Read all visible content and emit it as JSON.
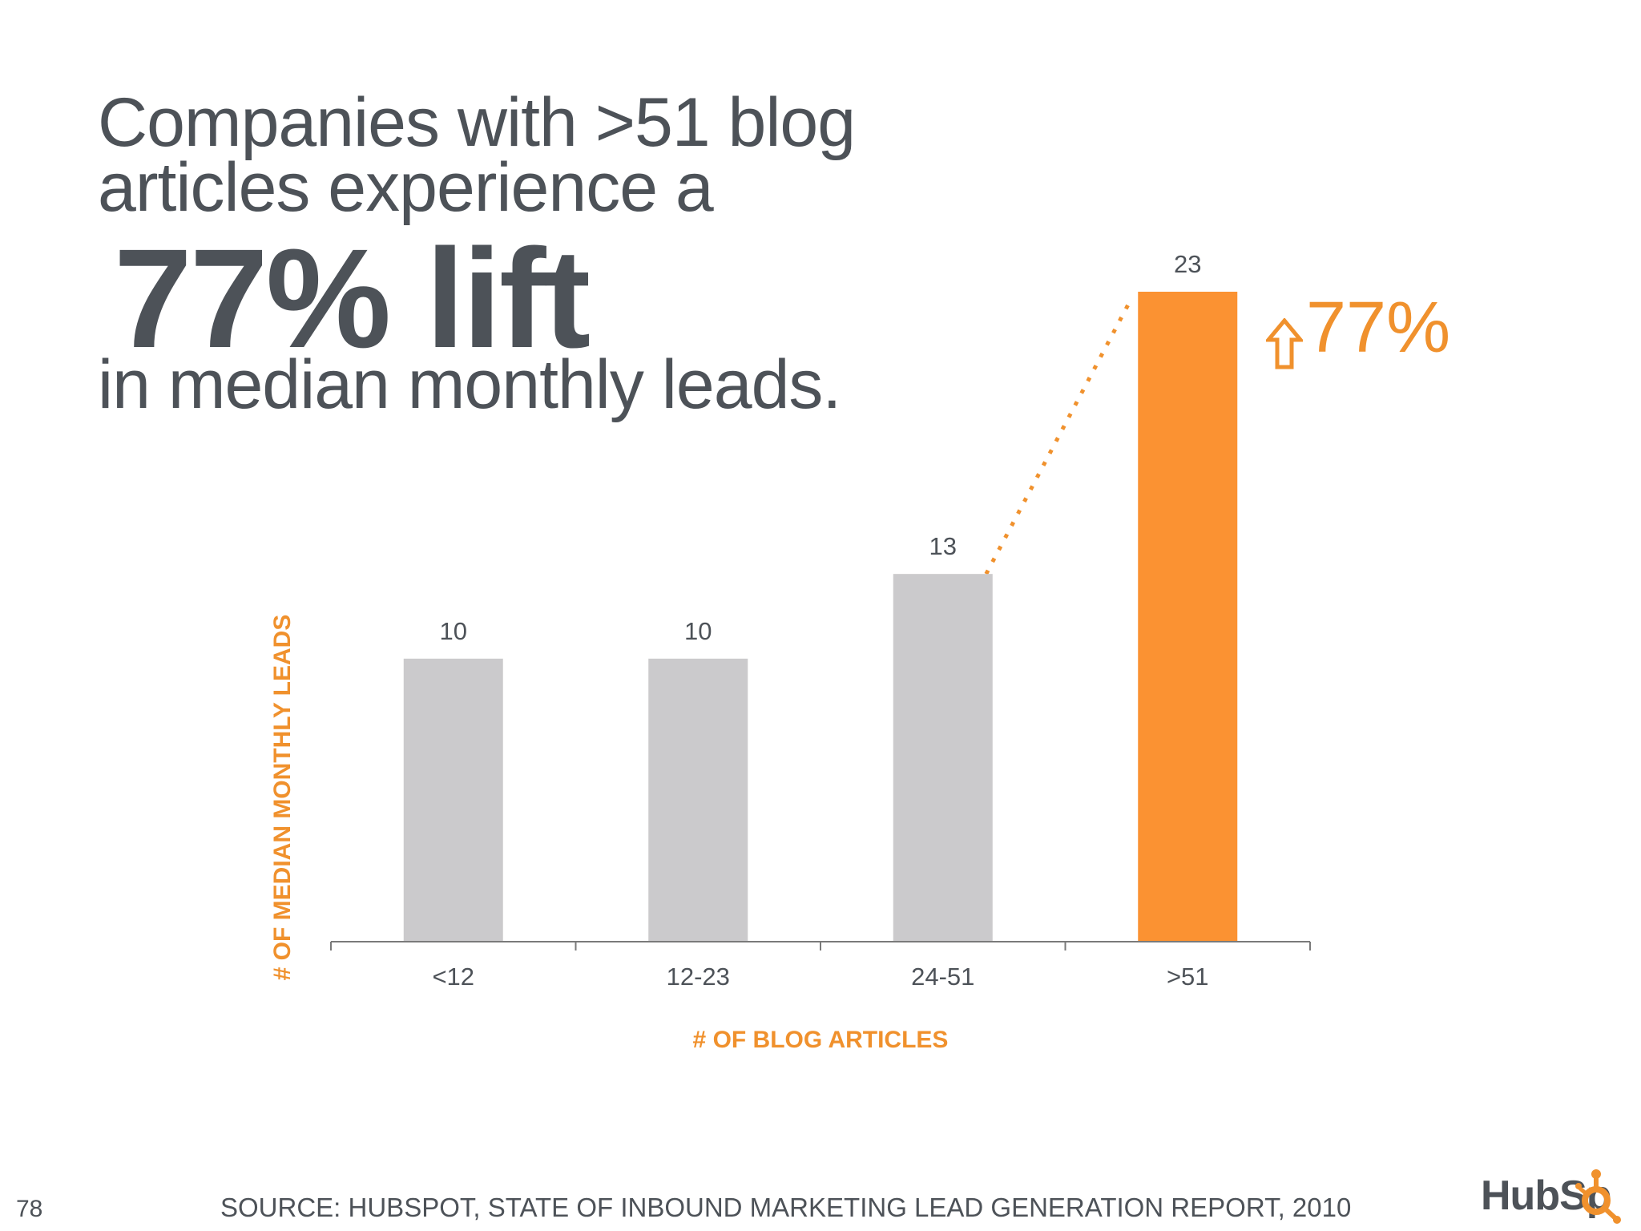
{
  "headline": {
    "line1": "Companies with >51 blog",
    "line2": "articles experience a",
    "big": "77% lift",
    "line3": "in median monthly leads."
  },
  "callout": {
    "text": "77%",
    "arrow_icon": "up-arrow-icon",
    "color": "#f0912d"
  },
  "footer": {
    "page_number": "78",
    "source": "SOURCE: HUBSPOT, STATE OF INBOUND MARKETING LEAD GENERATION REPORT, 2010",
    "logo_text": "HubSpot"
  },
  "colors": {
    "text": "#4d5258",
    "accent": "#f0912d",
    "bar_gray": "#cbcacc",
    "bar_highlight": "#fb9232",
    "axis": "#7a7a7a"
  },
  "chart_data": {
    "type": "bar",
    "categories": [
      "<12",
      "12-23",
      "24-51",
      ">51"
    ],
    "values": [
      10,
      10,
      13,
      23
    ],
    "data_labels": [
      "10",
      "10",
      "13",
      "23"
    ],
    "highlight_index": 3,
    "xlabel": "# OF BLOG ARTICLES",
    "ylabel": "# OF MEDIAN MONTHLY LEADS",
    "ylim": [
      0,
      23
    ],
    "grid": false,
    "connector": {
      "from_index": 2,
      "to_index": 3,
      "style": "dotted"
    }
  }
}
